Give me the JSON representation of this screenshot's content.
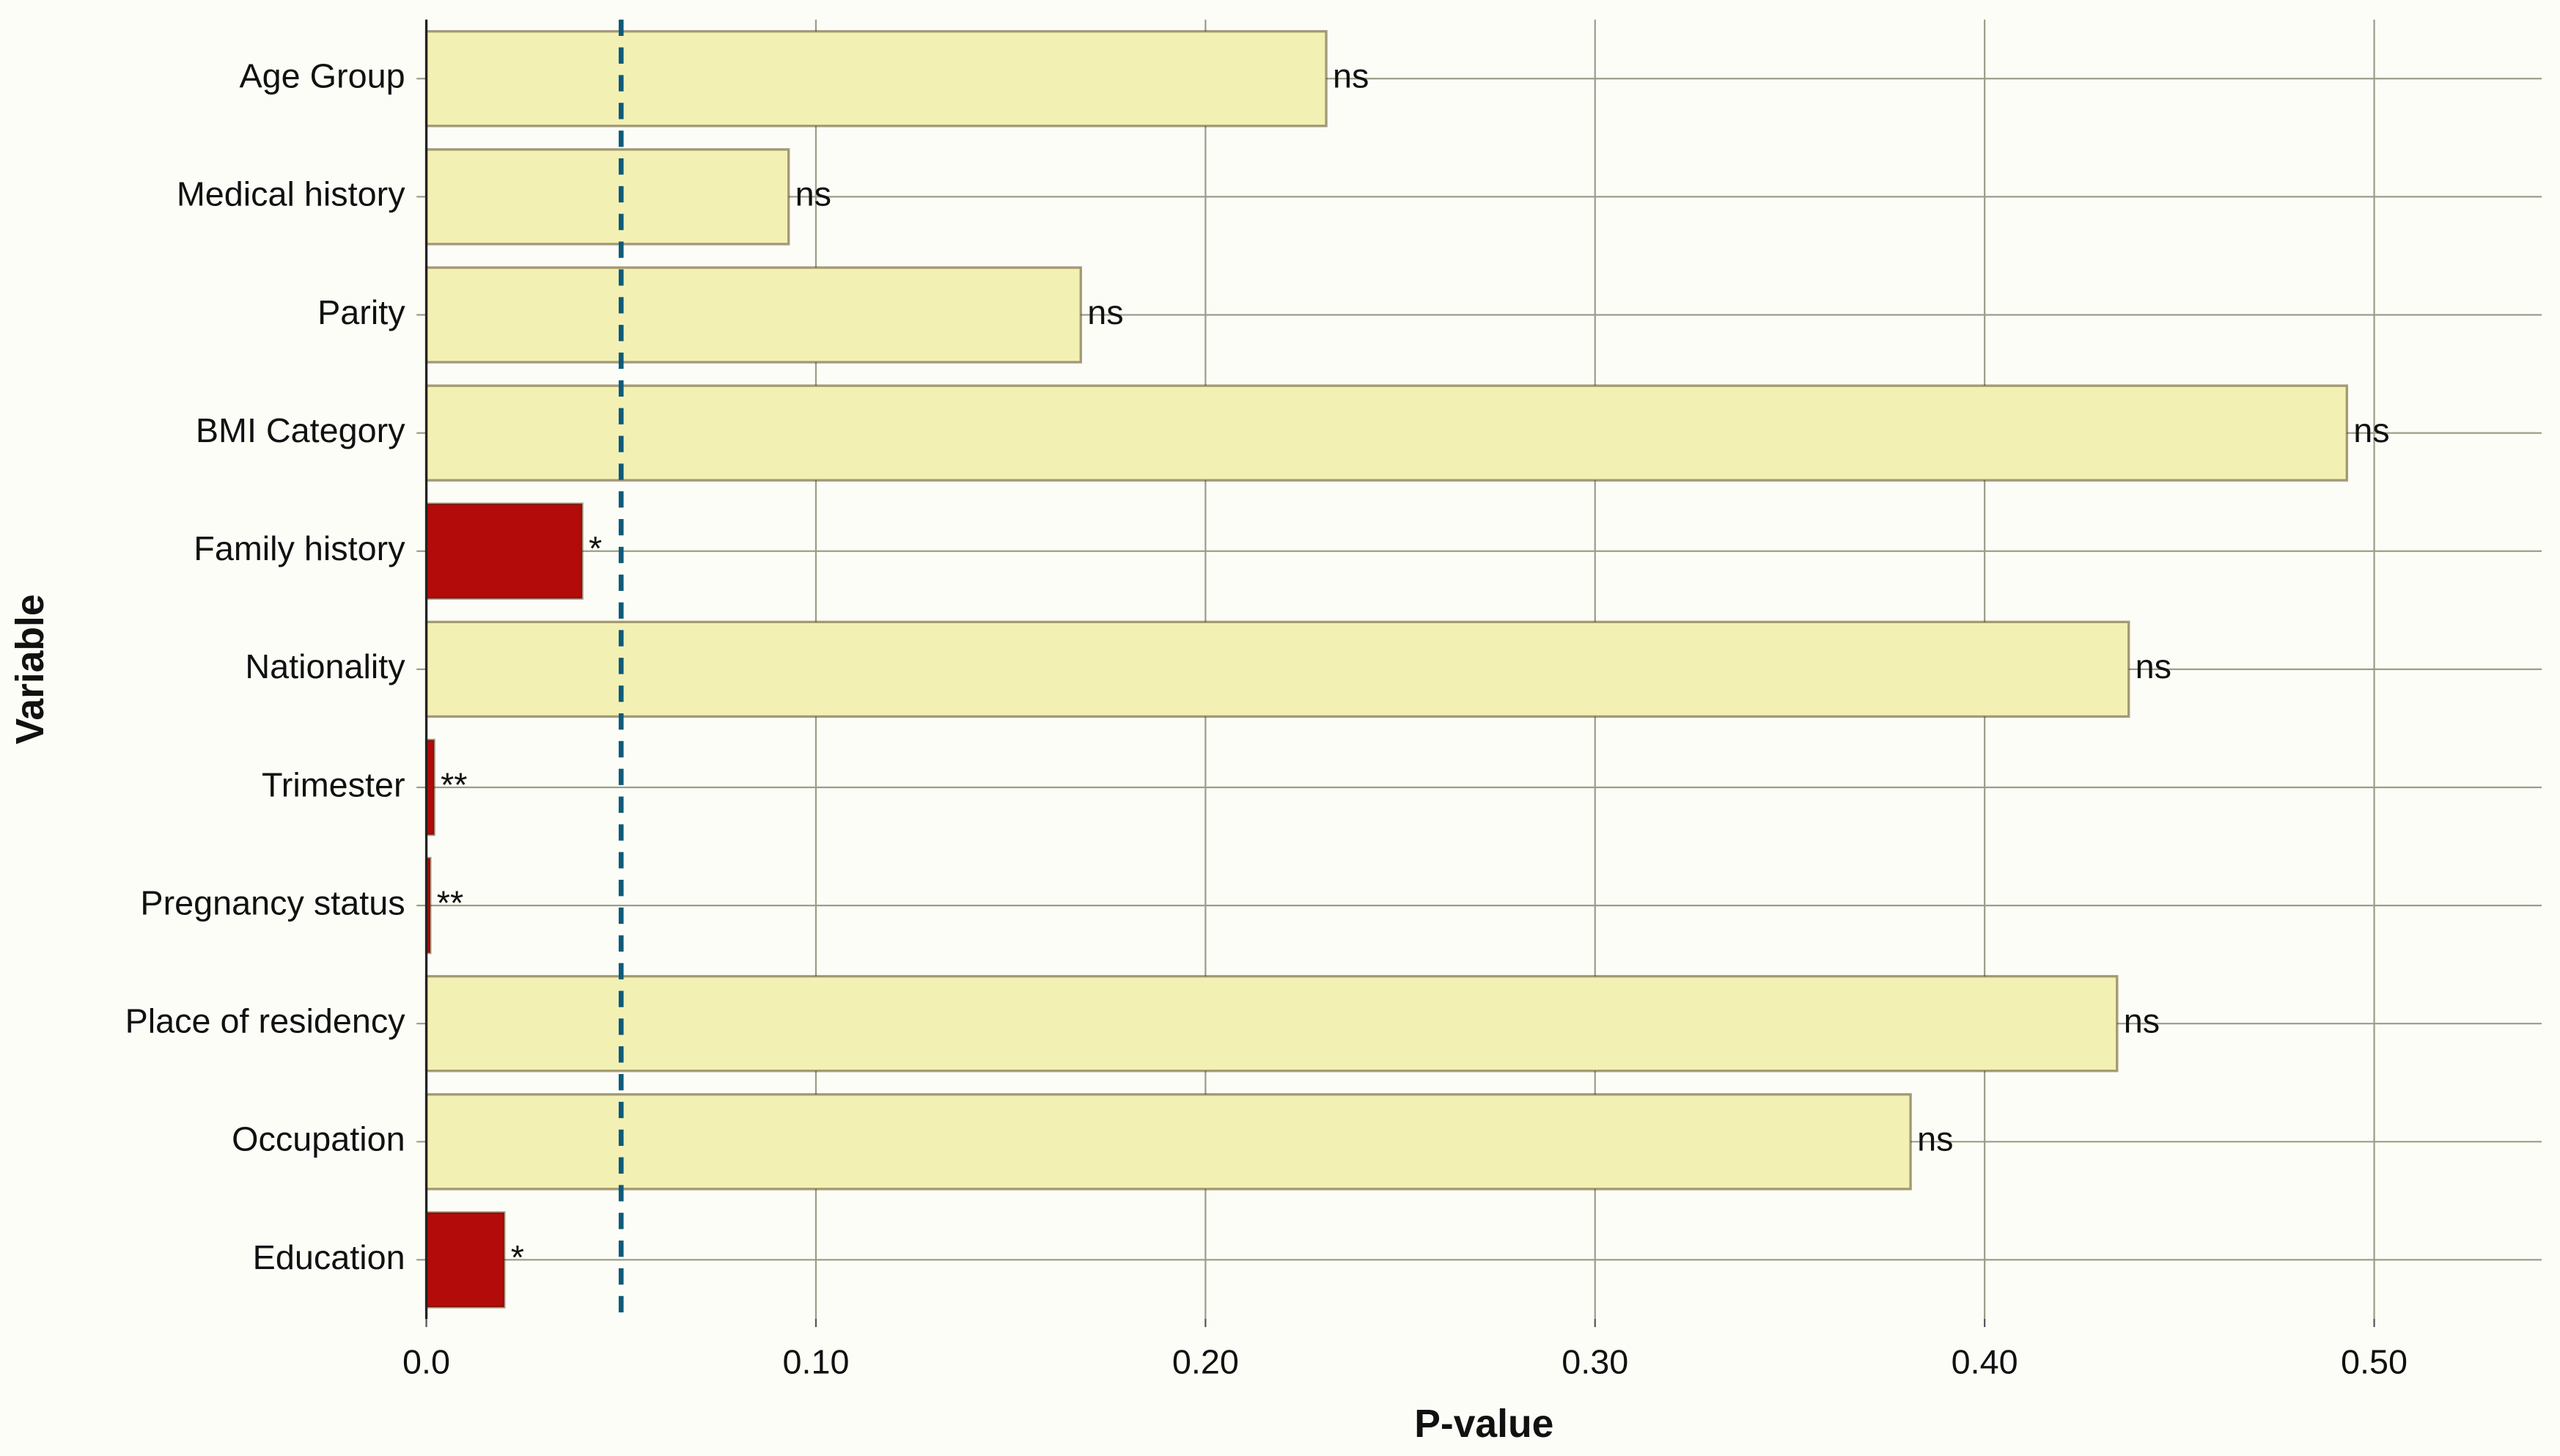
{
  "chart_data": {
    "type": "bar",
    "orientation": "horizontal",
    "x_label": "P-value",
    "y_label": "Variable",
    "categories": [
      "Age Group",
      "Medical history",
      "Parity",
      "BMI Category",
      "Family history",
      "Nationality",
      "Trimester",
      "Pregnancy status",
      "Place of residency",
      "Occupation",
      "Education"
    ],
    "values": [
      0.231,
      0.093,
      0.168,
      0.493,
      0.04,
      0.437,
      0.002,
      0.001,
      0.434,
      0.381,
      0.02
    ],
    "significance": [
      "ns",
      "ns",
      "ns",
      "ns",
      "*",
      "ns",
      "**",
      "**",
      "ns",
      "ns",
      "*"
    ],
    "colors": [
      "#f3f0b4",
      "#f3f0b4",
      "#f3f0b4",
      "#f3f0b4",
      "#b30a0a",
      "#f3f0b4",
      "#b30a0a",
      "#b30a0a",
      "#f3f0b4",
      "#f3f0b4",
      "#b30a0a"
    ],
    "threshold": 0.05,
    "threshold_color": "#0d5a7a",
    "xlim": [
      0,
      0.543
    ],
    "xticks": [
      {
        "value": 0,
        "label": "0.0"
      },
      {
        "value": 0.1,
        "label": "0.10"
      },
      {
        "value": 0.2,
        "label": "0.20"
      },
      {
        "value": 0.3,
        "label": "0.30"
      },
      {
        "value": 0.4,
        "label": "0.40"
      },
      {
        "value": 0.5,
        "label": "0.50"
      }
    ],
    "grid": true
  }
}
